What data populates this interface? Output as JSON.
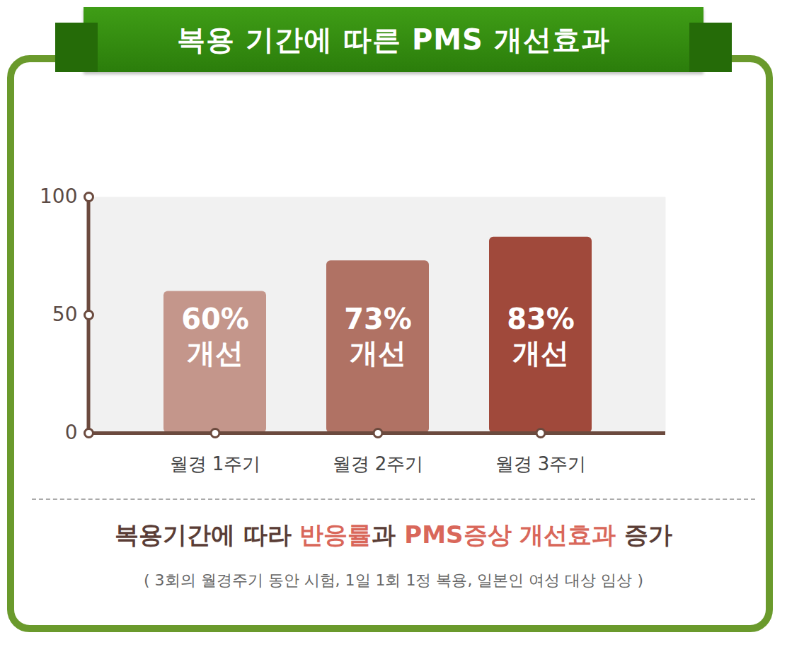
{
  "chart_data": {
    "type": "bar",
    "title": "복용 기간에 따른 PMS 개선효과",
    "categories": [
      "월경 1주기",
      "월경 2주기",
      "월경 3주기"
    ],
    "values": [
      60,
      73,
      83
    ],
    "value_labels": [
      "60%\n개선",
      "73%\n개선",
      "83%\n개선"
    ],
    "colors": [
      "#c4968b",
      "#b07264",
      "#a0493b"
    ],
    "ylim": [
      0,
      100
    ],
    "yticks": [
      0,
      50,
      100
    ],
    "grid": false,
    "data_labels": true,
    "caption": "복용기간에 따라 반응률과 PMS증상 개선효과 증가",
    "caption_highlights": [
      "반응률",
      "PMS증상 개선효과"
    ],
    "note": "( 3회의 월경주기 동안 시험, 1일 1회 1정 복용, 일본인 여성 대상 임상 )"
  }
}
